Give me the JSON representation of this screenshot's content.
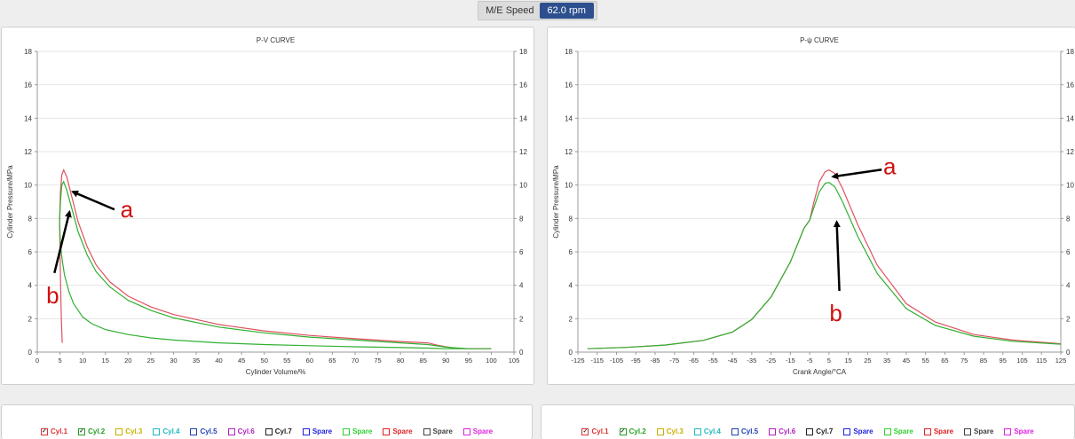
{
  "speed": {
    "label": "M/E Speed",
    "value": "62.0 rpm"
  },
  "chart_data": [
    {
      "type": "line",
      "title": "P-V CURVE",
      "xlabel": "Cylinder Volume/%",
      "ylabel": "Cylinder Pressure/MPa",
      "xlim": [
        0,
        105
      ],
      "ylim": [
        0,
        18
      ],
      "xticks": [
        0,
        5,
        10,
        15,
        20,
        25,
        30,
        35,
        40,
        45,
        50,
        55,
        60,
        65,
        70,
        75,
        80,
        85,
        90,
        95,
        100,
        105
      ],
      "yticks": [
        0,
        2,
        4,
        6,
        8,
        10,
        12,
        14,
        16,
        18
      ],
      "grid": true,
      "secondary_y_axis": true,
      "annotations": [
        {
          "text": "a",
          "arrow_to": [
            7.8,
            9.6
          ]
        },
        {
          "text": "b",
          "arrow_to": [
            7.1,
            8.4
          ]
        }
      ],
      "series": [
        {
          "color": "#e05060",
          "x": [
            5.5,
            5.3,
            5.1,
            4.9,
            5.1,
            5.4,
            5.8,
            6.5,
            7.5,
            9,
            11,
            13,
            16,
            20,
            25,
            30,
            40,
            50,
            60,
            70,
            80,
            86,
            88,
            90,
            92,
            95,
            100
          ],
          "y": [
            0.55,
            2.0,
            4.4,
            7.8,
            9.6,
            10.6,
            10.9,
            10.5,
            9.4,
            7.8,
            6.3,
            5.2,
            4.2,
            3.35,
            2.7,
            2.25,
            1.65,
            1.27,
            1.0,
            0.8,
            0.63,
            0.55,
            0.42,
            0.32,
            0.24,
            0.2,
            0.2
          ]
        },
        {
          "color": "#30b030",
          "x": [
            100,
            95,
            90,
            86,
            80,
            70,
            60,
            50,
            40,
            30,
            25,
            20,
            16,
            13,
            11,
            9,
            7.5,
            6.5,
            5.8,
            5.4,
            5.1,
            4.9,
            5.1,
            5.5,
            6,
            7,
            8,
            10,
            12,
            15,
            20,
            25,
            30,
            40,
            50,
            60,
            70,
            80,
            86,
            88,
            90,
            92,
            95,
            100
          ],
          "y": [
            0.2,
            0.2,
            0.3,
            0.45,
            0.55,
            0.72,
            0.9,
            1.15,
            1.5,
            2.05,
            2.5,
            3.1,
            3.9,
            4.8,
            5.8,
            7.2,
            8.7,
            9.7,
            10.2,
            10.0,
            9.0,
            7.8,
            6.4,
            5.5,
            4.6,
            3.6,
            2.9,
            2.1,
            1.7,
            1.35,
            1.05,
            0.85,
            0.72,
            0.55,
            0.45,
            0.38,
            0.32,
            0.27,
            0.24,
            0.22,
            0.2,
            0.2,
            0.2,
            0.2
          ]
        }
      ]
    },
    {
      "type": "line",
      "title": "P-ψ CURVE",
      "xlabel": "Crank Angle/°CA",
      "ylabel": "Cylinder Pressure/MPa",
      "xlim": [
        -125,
        125
      ],
      "ylim": [
        0,
        18
      ],
      "xticks": [
        -125,
        -115,
        -105,
        -95,
        -85,
        -75,
        -65,
        -55,
        -45,
        -35,
        -25,
        -15,
        -5,
        5,
        15,
        25,
        35,
        45,
        55,
        65,
        75,
        85,
        95,
        105,
        115,
        125
      ],
      "yticks": [
        0,
        2,
        4,
        6,
        8,
        10,
        12,
        14,
        16,
        18
      ],
      "grid": true,
      "secondary_y_axis": true,
      "annotations": [
        {
          "text": "a",
          "arrow_to": [
            7,
            10.5
          ]
        },
        {
          "text": "b",
          "arrow_to": [
            9,
            7.8
          ]
        }
      ],
      "series": [
        {
          "color": "#e05060",
          "x": [
            -120,
            -100,
            -80,
            -60,
            -45,
            -35,
            -25,
            -15,
            -8,
            -5,
            -3,
            0,
            3,
            5,
            8,
            12,
            20,
            30,
            45,
            60,
            80,
            100,
            125
          ],
          "y": [
            0.2,
            0.28,
            0.42,
            0.7,
            1.2,
            1.95,
            3.3,
            5.4,
            7.4,
            7.9,
            8.9,
            10.2,
            10.8,
            10.9,
            10.7,
            9.8,
            7.6,
            5.2,
            2.9,
            1.8,
            1.05,
            0.72,
            0.5
          ]
        },
        {
          "color": "#30b030",
          "x": [
            -120,
            -100,
            -80,
            -60,
            -45,
            -35,
            -25,
            -15,
            -8,
            -5,
            -3,
            0,
            3,
            5,
            8,
            12,
            20,
            30,
            45,
            60,
            80,
            100,
            125
          ],
          "y": [
            0.2,
            0.28,
            0.42,
            0.7,
            1.2,
            1.95,
            3.3,
            5.4,
            7.4,
            7.9,
            8.6,
            9.6,
            10.1,
            10.15,
            9.9,
            9.0,
            6.9,
            4.7,
            2.6,
            1.6,
            0.95,
            0.65,
            0.47
          ]
        }
      ]
    }
  ],
  "legend": {
    "items": [
      {
        "label": "Cyl.1",
        "checked": true,
        "color": "#e03030"
      },
      {
        "label": "Cyl.2",
        "checked": true,
        "color": "#20a020"
      },
      {
        "label": "Cyl.3",
        "checked": false,
        "color": "#c8b000"
      },
      {
        "label": "Cyl.4",
        "checked": false,
        "color": "#20b8c0"
      },
      {
        "label": "Cyl.5",
        "checked": false,
        "color": "#2040b0"
      },
      {
        "label": "Cyl.6",
        "checked": false,
        "color": "#b020c0"
      },
      {
        "label": "Cyl.7",
        "checked": false,
        "color": "#202020"
      },
      {
        "label": "Spare",
        "checked": false,
        "color": "#2020e0"
      },
      {
        "label": "Spare",
        "checked": false,
        "color": "#30d030"
      },
      {
        "label": "Spare",
        "checked": false,
        "color": "#e02020"
      },
      {
        "label": "Spare",
        "checked": false,
        "color": "#404040"
      },
      {
        "label": "Spare",
        "checked": false,
        "color": "#e020e0"
      }
    ]
  }
}
